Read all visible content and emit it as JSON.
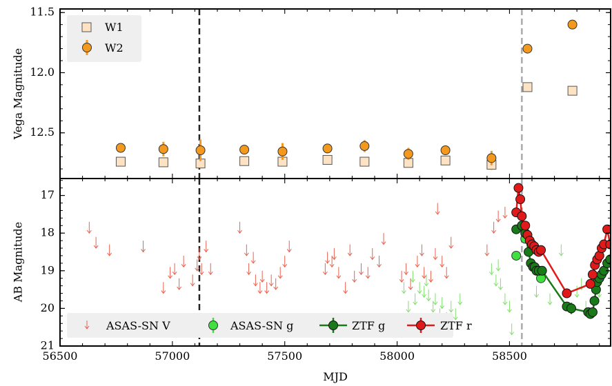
{
  "chart_data": [
    {
      "type": "scatter",
      "panel": "top",
      "xlabel": "",
      "ylabel": "Vega Magnitude",
      "xlim": [
        56500,
        58950
      ],
      "ylim": [
        12.88,
        11.47
      ],
      "y_inverted": true,
      "yticks": [
        11.5,
        12.0,
        12.5
      ],
      "ytick_labels": [
        "11.5",
        "12.0",
        "12.5"
      ],
      "vlines": [
        {
          "x": 57120,
          "style": "dashed",
          "color": "#222222"
        },
        {
          "x": 58555,
          "style": "dashed",
          "color": "#aaaaaa"
        }
      ],
      "legend": {
        "position": "top-left",
        "entries": [
          "W1",
          "W2"
        ]
      },
      "series": [
        {
          "name": "W1",
          "marker": "square",
          "face": "#fde3c4",
          "edge": "#555555",
          "x": [
            56770,
            56960,
            57125,
            57320,
            57490,
            57690,
            57855,
            58050,
            58215,
            58420,
            58580,
            58780
          ],
          "y": [
            12.74,
            12.745,
            12.755,
            12.735,
            12.74,
            12.725,
            12.74,
            12.75,
            12.73,
            12.765,
            12.12,
            12.15
          ],
          "err": [
            0.03,
            0.03,
            0.04,
            0.03,
            0.03,
            0.03,
            0.03,
            0.03,
            0.03,
            0.05,
            0.02,
            0.02
          ]
        },
        {
          "name": "W2",
          "marker": "circle",
          "face": "#f39a1e",
          "edge": "#333333",
          "x": [
            56770,
            56960,
            57125,
            57320,
            57490,
            57690,
            57855,
            58050,
            58215,
            58420,
            58580,
            58780
          ],
          "y": [
            12.625,
            12.635,
            12.645,
            12.64,
            12.655,
            12.63,
            12.61,
            12.675,
            12.645,
            12.71,
            11.8,
            11.6
          ],
          "err": [
            0.03,
            0.06,
            0.09,
            0.04,
            0.07,
            0.04,
            0.05,
            0.05,
            0.04,
            0.06,
            0.03,
            0.02
          ]
        }
      ]
    },
    {
      "type": "line",
      "panel": "bottom",
      "xlabel": "MJD",
      "ylabel": "AB Magnitude",
      "xlim": [
        56500,
        58950
      ],
      "ylim": [
        21.0,
        16.55
      ],
      "y_inverted": true,
      "xticks": [
        56500,
        57000,
        57500,
        58000,
        58500
      ],
      "xtick_labels": [
        "56500",
        "57000",
        "57500",
        "58000",
        "58500"
      ],
      "yticks": [
        17,
        18,
        19,
        20,
        21
      ],
      "ytick_labels": [
        "17",
        "18",
        "19",
        "20",
        "21"
      ],
      "vlines": [
        {
          "x": 57120,
          "style": "dashed",
          "color": "#222222"
        },
        {
          "x": 58555,
          "style": "dashed",
          "color": "#aaaaaa"
        }
      ],
      "legend": {
        "position": "bottom",
        "entries": [
          "ASAS-SN V",
          "ASAS-SN g",
          "ZTF g",
          "ZTF r"
        ]
      },
      "series": [
        {
          "name": "ASAS-SN V",
          "kind": "upper-limit",
          "color": "#e8604e",
          "x": [
            56630,
            56660,
            56720,
            56870,
            56960,
            56990,
            57010,
            57030,
            57050,
            57090,
            57110,
            57120,
            57130,
            57150,
            57170,
            57300,
            57330,
            57340,
            57360,
            57370,
            57390,
            57400,
            57420,
            57440,
            57460,
            57480,
            57500,
            57520,
            57680,
            57690,
            57710,
            57720,
            57740,
            57770,
            57790,
            57810,
            57840,
            57870,
            57890,
            57920,
            57940,
            58020,
            58040,
            58060,
            58090,
            58110,
            58120,
            58150,
            58170,
            58180,
            58200,
            58220,
            58240,
            58400,
            58430,
            58450,
            58480
          ],
          "y": [
            17.7,
            18.1,
            18.3,
            18.2,
            19.3,
            18.9,
            18.8,
            19.2,
            18.6,
            19.1,
            18.7,
            18.4,
            18.8,
            18.2,
            18.8,
            17.7,
            18.3,
            18.8,
            18.5,
            19.1,
            19.3,
            19.0,
            19.3,
            19.1,
            19.2,
            18.9,
            18.6,
            18.2,
            18.8,
            18.5,
            18.6,
            18.4,
            18.9,
            19.3,
            18.3,
            19.0,
            18.8,
            18.9,
            18.4,
            18.6,
            18.0,
            19.0,
            18.8,
            19.2,
            18.6,
            18.3,
            18.9,
            19.0,
            18.4,
            17.2,
            18.6,
            18.9,
            18.1,
            18.3,
            17.7,
            17.4,
            17.3
          ],
          "drop": 0.3
        },
        {
          "name": "ASAS-SN g",
          "kind": "upper-limit",
          "color": "#7fe06a",
          "x": [
            58030,
            58050,
            58070,
            58080,
            58100,
            58120,
            58130,
            58140,
            58160,
            58170,
            58190,
            58200,
            58220,
            58240,
            58260,
            58280,
            58420,
            58440,
            58450,
            58460,
            58480,
            58500,
            58510,
            58620,
            58680,
            58730,
            58800,
            58820,
            58840,
            58900
          ],
          "y": [
            19.3,
            19.8,
            19.0,
            19.6,
            19.3,
            19.4,
            19.1,
            19.5,
            19.8,
            19.6,
            20.0,
            19.7,
            20.1,
            19.8,
            20.0,
            19.6,
            18.8,
            19.1,
            18.7,
            19.2,
            19.6,
            19.8,
            20.4,
            19.4,
            19.6,
            18.3,
            19.4,
            19.2,
            19.8,
            19.4
          ],
          "drop": 0.3
        },
        {
          "name": "ASAS-SN g",
          "kind": "points",
          "color": "#40e040",
          "edge": "#333333",
          "x": [
            58530,
            58570,
            58640
          ],
          "y": [
            18.6,
            18.15,
            19.2
          ],
          "err": [
            0.05,
            0.05,
            0.05
          ]
        },
        {
          "name": "ZTF g",
          "kind": "line-points",
          "color": "#1a7a1a",
          "edge": "#111111",
          "x": [
            58530,
            58555,
            58570,
            58585,
            58595,
            58605,
            58612,
            58620,
            58630,
            58645,
            58755,
            58775,
            58850,
            58860,
            58870,
            58878,
            58885,
            58890,
            58900,
            58910,
            58920,
            58935,
            58948
          ],
          "y": [
            17.9,
            17.8,
            18.0,
            18.5,
            18.8,
            18.9,
            18.9,
            19.0,
            19.0,
            19.0,
            19.95,
            20.0,
            20.1,
            20.15,
            20.1,
            19.8,
            19.5,
            19.3,
            19.2,
            19.1,
            19.0,
            18.8,
            18.7
          ],
          "err": [
            0.03,
            0.03,
            0.03,
            0.04,
            0.05,
            0.05,
            0.05,
            0.05,
            0.05,
            0.05,
            0.12,
            0.15,
            0.12,
            0.1,
            0.08,
            0.07,
            0.06,
            0.05,
            0.05,
            0.05,
            0.05,
            0.05,
            0.05
          ]
        },
        {
          "name": "ZTF r",
          "kind": "line-points",
          "color": "#e01a1a",
          "edge": "#111111",
          "x": [
            58530,
            58540,
            58548,
            58555,
            58570,
            58580,
            58590,
            58600,
            58610,
            58620,
            58630,
            58640,
            58755,
            58860,
            58870,
            58880,
            58890,
            58900,
            58910,
            58920,
            58935,
            58948
          ],
          "y": [
            17.45,
            16.8,
            17.1,
            17.55,
            17.8,
            18.05,
            18.2,
            18.3,
            18.35,
            18.45,
            18.5,
            18.45,
            19.6,
            19.35,
            19.1,
            18.85,
            18.7,
            18.6,
            18.4,
            18.3,
            17.9,
            18.3
          ],
          "err": [
            0.03,
            0.03,
            0.03,
            0.03,
            0.03,
            0.03,
            0.03,
            0.04,
            0.04,
            0.04,
            0.04,
            0.04,
            0.12,
            0.1,
            0.08,
            0.06,
            0.05,
            0.05,
            0.05,
            0.05,
            0.05,
            0.05
          ]
        }
      ]
    }
  ],
  "colors": {
    "background": "#ffffff",
    "legend_box": "#efefef",
    "axis": "#000000"
  }
}
